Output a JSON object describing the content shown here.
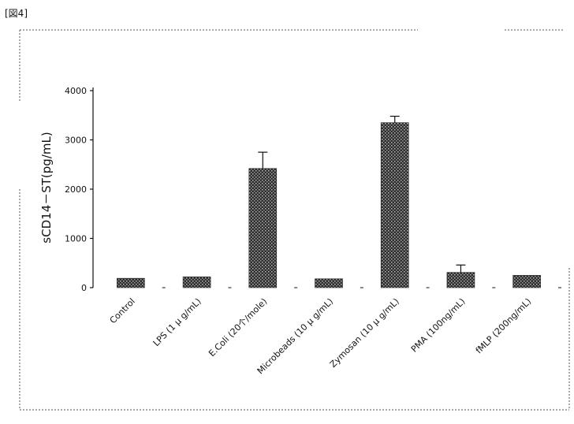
{
  "figure_label": "[図4]",
  "chart_data": {
    "type": "bar",
    "title": "",
    "xlabel": "",
    "ylabel": "sCD14－ST(pg/mL)",
    "ylim": [
      0,
      4000
    ],
    "yticks": [
      0,
      1000,
      2000,
      3000,
      4000
    ],
    "grid": false,
    "categories": [
      "Control",
      "LPS (1 μ g/mL)",
      "E.Coli (20个/mole)",
      "Microbeads (10 μ g/mL)",
      "Zymosan (10 μ g/mL)",
      "PMA (100ng/mL)",
      "fMLP (200ng/mL)"
    ],
    "values": [
      190,
      220,
      2420,
      180,
      3350,
      310,
      250
    ],
    "error": [
      0,
      0,
      330,
      0,
      130,
      150,
      0
    ],
    "bar_color": "#3a3a3a"
  }
}
